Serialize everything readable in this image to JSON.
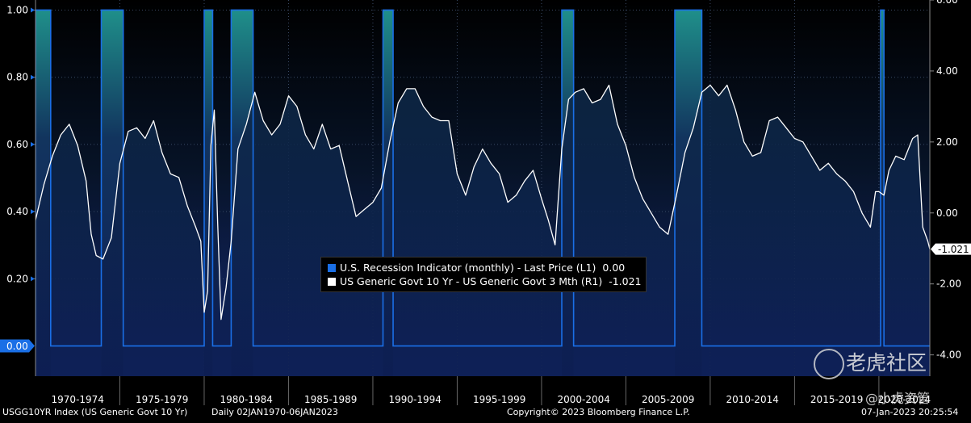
{
  "chart_data": {
    "type": "area",
    "title": "",
    "xlabel": "",
    "x_tick_labels": [
      "1970-1974",
      "1975-1979",
      "1980-1984",
      "1985-1989",
      "1990-1994",
      "1995-1999",
      "2000-2004",
      "2005-2009",
      "2010-2014",
      "2015-2019",
      "2020-2024"
    ],
    "xlim": [
      1970.0,
      2023.02
    ],
    "left_axis": {
      "ylim": [
        -0.09,
        1.03
      ],
      "ticks": [
        "1.00",
        "0.80",
        "0.60",
        "0.40",
        "0.20"
      ]
    },
    "right_axis": {
      "ylim": [
        -4.6,
        6.0
      ],
      "ticks": [
        "6.00",
        "4.00",
        "2.00",
        "0.00",
        "-2.00",
        "-4.00"
      ]
    },
    "series": [
      {
        "name": "U.S. Recession Indicator (monthly) - Last Price (L1)",
        "axis": "left",
        "last_value": "0.00",
        "color": "#1a6fe6",
        "recessions": [
          [
            1970.0,
            1970.9
          ],
          [
            1973.9,
            1975.2
          ],
          [
            1980.0,
            1980.5
          ],
          [
            1981.6,
            1982.9
          ],
          [
            1990.6,
            1991.2
          ],
          [
            2001.2,
            2001.9
          ],
          [
            2007.9,
            2009.5
          ],
          [
            2020.1,
            2020.3
          ]
        ]
      },
      {
        "name": "US Generic Govt 10 Yr - US Generic Govt 3 Mth (R1)",
        "axis": "right",
        "last_value": "-1.021",
        "color": "#ffffff",
        "x": [
          1970.0,
          1970.5,
          1971.0,
          1971.5,
          1972.0,
          1972.5,
          1973.0,
          1973.3,
          1973.6,
          1974.0,
          1974.5,
          1975.0,
          1975.5,
          1976.0,
          1976.5,
          1977.0,
          1977.5,
          1978.0,
          1978.5,
          1979.0,
          1979.5,
          1979.8,
          1980.0,
          1980.2,
          1980.4,
          1980.6,
          1980.8,
          1981.0,
          1981.3,
          1981.6,
          1982.0,
          1982.5,
          1983.0,
          1983.5,
          1984.0,
          1984.5,
          1985.0,
          1985.5,
          1986.0,
          1986.5,
          1987.0,
          1987.5,
          1988.0,
          1988.5,
          1989.0,
          1989.5,
          1990.0,
          1990.5,
          1991.0,
          1991.5,
          1992.0,
          1992.5,
          1993.0,
          1993.5,
          1994.0,
          1994.5,
          1995.0,
          1995.5,
          1996.0,
          1996.5,
          1997.0,
          1997.5,
          1998.0,
          1998.5,
          1999.0,
          1999.5,
          2000.0,
          2000.4,
          2000.8,
          2001.2,
          2001.6,
          2002.0,
          2002.5,
          2003.0,
          2003.5,
          2004.0,
          2004.5,
          2005.0,
          2005.5,
          2006.0,
          2006.5,
          2007.0,
          2007.5,
          2008.0,
          2008.5,
          2009.0,
          2009.5,
          2010.0,
          2010.5,
          2011.0,
          2011.5,
          2012.0,
          2012.5,
          2013.0,
          2013.5,
          2014.0,
          2014.5,
          2015.0,
          2015.5,
          2016.0,
          2016.5,
          2017.0,
          2017.5,
          2018.0,
          2018.5,
          2019.0,
          2019.5,
          2019.8,
          2020.0,
          2020.3,
          2020.6,
          2021.0,
          2021.5,
          2022.0,
          2022.3,
          2022.6,
          2022.9,
          2023.02
        ],
        "y": [
          -0.2,
          0.8,
          1.6,
          2.2,
          2.5,
          1.9,
          0.9,
          -0.6,
          -1.2,
          -1.3,
          -0.7,
          1.4,
          2.3,
          2.4,
          2.1,
          2.6,
          1.7,
          1.1,
          1.0,
          0.2,
          -0.4,
          -0.8,
          -2.8,
          -2.2,
          1.9,
          2.9,
          -0.3,
          -3.0,
          -2.1,
          -0.8,
          1.8,
          2.5,
          3.4,
          2.6,
          2.2,
          2.5,
          3.3,
          3.0,
          2.2,
          1.8,
          2.5,
          1.8,
          1.9,
          0.9,
          -0.1,
          0.1,
          0.3,
          0.7,
          2.0,
          3.1,
          3.5,
          3.5,
          3.0,
          2.7,
          2.6,
          2.6,
          1.1,
          0.5,
          1.3,
          1.8,
          1.4,
          1.1,
          0.3,
          0.5,
          0.9,
          1.2,
          0.4,
          -0.2,
          -0.9,
          1.8,
          3.2,
          3.4,
          3.5,
          3.1,
          3.2,
          3.6,
          2.5,
          1.9,
          1.0,
          0.4,
          0.0,
          -0.4,
          -0.6,
          0.5,
          1.7,
          2.4,
          3.4,
          3.6,
          3.3,
          3.6,
          2.9,
          2.0,
          1.6,
          1.7,
          2.6,
          2.7,
          2.4,
          2.1,
          2.0,
          1.6,
          1.2,
          1.4,
          1.1,
          0.9,
          0.6,
          0.0,
          -0.4,
          0.6,
          0.6,
          0.5,
          1.2,
          1.6,
          1.5,
          2.1,
          2.2,
          -0.4,
          -0.8,
          -1.021
        ]
      }
    ],
    "last_price_label": "-1.021",
    "left_last_label": "0.00",
    "grid": true,
    "legend_position": "center"
  },
  "footer": {
    "ticker": "USGG10YR Index (US Generic Govt 10 Yr)",
    "range": "Daily 02JAN1970-06JAN2023",
    "copyright": "Copyright© 2023 Bloomberg Finance L.P.",
    "timestamp": "07-Jan-2023 20:25:54"
  },
  "watermark": {
    "text": "老虎社区",
    "handle": "@小虎资管"
  },
  "colors": {
    "background": "#000000",
    "plot_top": "#0a1830",
    "plot_bottom": "#142a70",
    "recession": "#1a6fe6",
    "spread": "#ffffff"
  }
}
